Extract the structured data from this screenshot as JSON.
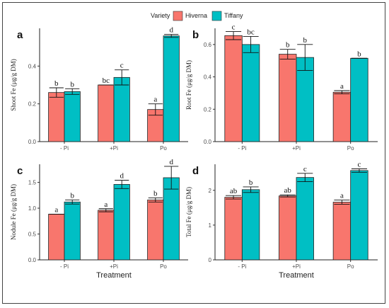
{
  "chart_data": {
    "type": "bar",
    "legend": {
      "title": "Variety",
      "placement": "top",
      "items": [
        {
          "name": "Hiverna",
          "color": "#f8766d"
        },
        {
          "name": "Tiffany",
          "color": "#00bfc4"
        }
      ]
    },
    "categories": [
      "- Pi",
      "+Pi",
      "Po"
    ],
    "series_names": [
      "Hiverna",
      "Tiffany"
    ],
    "panels": [
      {
        "label": "a",
        "ylabel": "Shoot Fe (μg/g DM)",
        "xlabel": "",
        "ylim": [
          0,
          0.6
        ],
        "yticks": [
          0.0,
          0.2,
          0.4
        ],
        "tick_labels": [
          "0.0",
          "0.2",
          "0.4"
        ],
        "series": [
          {
            "name": "Hiverna",
            "values": [
              0.26,
              0.3,
              0.17
            ],
            "errors": [
              0.025,
              0.0,
              0.03
            ],
            "letters": [
              "b",
              "bc",
              "a"
            ]
          },
          {
            "name": "Tiffany",
            "values": [
              0.265,
              0.34,
              0.56
            ],
            "errors": [
              0.015,
              0.04,
              0.008
            ],
            "letters": [
              "b",
              "c",
              "d"
            ]
          }
        ]
      },
      {
        "label": "b",
        "ylabel": "Root Fe (μg/g DM)",
        "xlabel": "",
        "ylim": [
          0,
          0.7
        ],
        "yticks": [
          0.0,
          0.2,
          0.4,
          0.6
        ],
        "tick_labels": [
          "0.0",
          "0.2",
          "0.4",
          "0.6"
        ],
        "series": [
          {
            "name": "Hiverna",
            "values": [
              0.655,
              0.54,
              0.305
            ],
            "errors": [
              0.025,
              0.03,
              0.01
            ],
            "letters": [
              "c",
              "b",
              "a"
            ]
          },
          {
            "name": "Tiffany",
            "values": [
              0.6,
              0.52,
              0.515
            ],
            "errors": [
              0.05,
              0.08,
              0.0
            ],
            "letters": [
              "bc",
              "b",
              "b"
            ]
          }
        ]
      },
      {
        "label": "c",
        "ylabel": "Nodule Fe (μg/g DM)",
        "xlabel": "Treatment",
        "ylim": [
          0,
          1.85
        ],
        "yticks": [
          0.0,
          0.5,
          1.0,
          1.5
        ],
        "tick_labels": [
          "0.0",
          "0.5",
          "1.0",
          "1.5"
        ],
        "series": [
          {
            "name": "Hiverna",
            "values": [
              0.885,
              0.96,
              1.16
            ],
            "errors": [
              0.0,
              0.03,
              0.04
            ],
            "letters": [
              "a",
              "a",
              "b"
            ]
          },
          {
            "name": "Tiffany",
            "values": [
              1.12,
              1.46,
              1.59
            ],
            "errors": [
              0.04,
              0.08,
              0.22
            ],
            "letters": [
              "b",
              "d",
              "d"
            ]
          }
        ]
      },
      {
        "label": "d",
        "ylabel": "Total Fe (μg/g DM)",
        "xlabel": "Treatment",
        "ylim": [
          0,
          2.75
        ],
        "yticks": [
          0,
          1,
          2
        ],
        "tick_labels": [
          "0",
          "1",
          "2"
        ],
        "series": [
          {
            "name": "Hiverna",
            "values": [
              1.8,
              1.84,
              1.66
            ],
            "errors": [
              0.05,
              0.03,
              0.06
            ],
            "letters": [
              "ab",
              "ab",
              "a"
            ]
          },
          {
            "name": "Tiffany",
            "values": [
              2.02,
              2.37,
              2.57
            ],
            "errors": [
              0.08,
              0.12,
              0.05
            ],
            "letters": [
              "b",
              "c",
              "c"
            ]
          }
        ]
      }
    ]
  }
}
